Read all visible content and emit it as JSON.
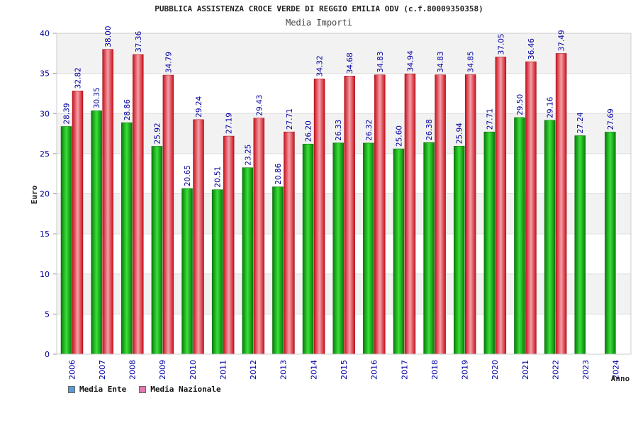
{
  "chart_data": {
    "type": "bar",
    "title": "PUBBLICA ASSISTENZA CROCE VERDE DI REGGIO EMILIA ODV (c.f.80009350358)",
    "subtitle": "Media Importi",
    "xlabel": "Anno",
    "ylabel": "Euro",
    "ylim": [
      0,
      40
    ],
    "yticks": [
      0,
      5,
      10,
      15,
      20,
      25,
      30,
      35,
      40
    ],
    "categories": [
      "2006",
      "2007",
      "2008",
      "2009",
      "2010",
      "2011",
      "2012",
      "2013",
      "2014",
      "2015",
      "2016",
      "2017",
      "2018",
      "2019",
      "2020",
      "2021",
      "2022",
      "2023",
      "2024"
    ],
    "series": [
      {
        "name": "Media Ente",
        "color": "#1aa81a",
        "values": [
          28.39,
          30.35,
          28.86,
          25.92,
          20.65,
          20.51,
          23.25,
          20.86,
          26.2,
          26.33,
          26.32,
          25.6,
          26.38,
          25.94,
          27.71,
          29.5,
          29.16,
          27.24,
          27.69
        ],
        "labels": [
          "28.39",
          "30.35",
          "28.86",
          "25.92",
          "20.65",
          "20.51",
          "23.25",
          "20.86",
          "26.20",
          "26.33",
          "26.32",
          "25.60",
          "26.38",
          "25.94",
          "27.71",
          "29.50",
          "29.16",
          "27.24",
          "27.69"
        ]
      },
      {
        "name": "Media Nazionale",
        "color": "#e8303a",
        "values": [
          32.82,
          38.0,
          37.36,
          34.79,
          29.24,
          27.19,
          29.43,
          27.71,
          34.32,
          34.68,
          34.83,
          34.94,
          34.83,
          34.85,
          37.05,
          36.46,
          37.49,
          null,
          null
        ],
        "labels": [
          "32.82",
          "38.00",
          "37.36",
          "34.79",
          "29.24",
          "27.19",
          "29.43",
          "27.71",
          "34.32",
          "34.68",
          "34.83",
          "34.94",
          "34.83",
          "34.85",
          "37.05",
          "36.46",
          "37.49",
          null,
          null
        ]
      }
    ],
    "legend": [
      {
        "label": "Media Ente",
        "color": "#5b9bd5"
      },
      {
        "label": "Media Nazionale",
        "color": "#e07ab0"
      }
    ],
    "grid": true
  }
}
